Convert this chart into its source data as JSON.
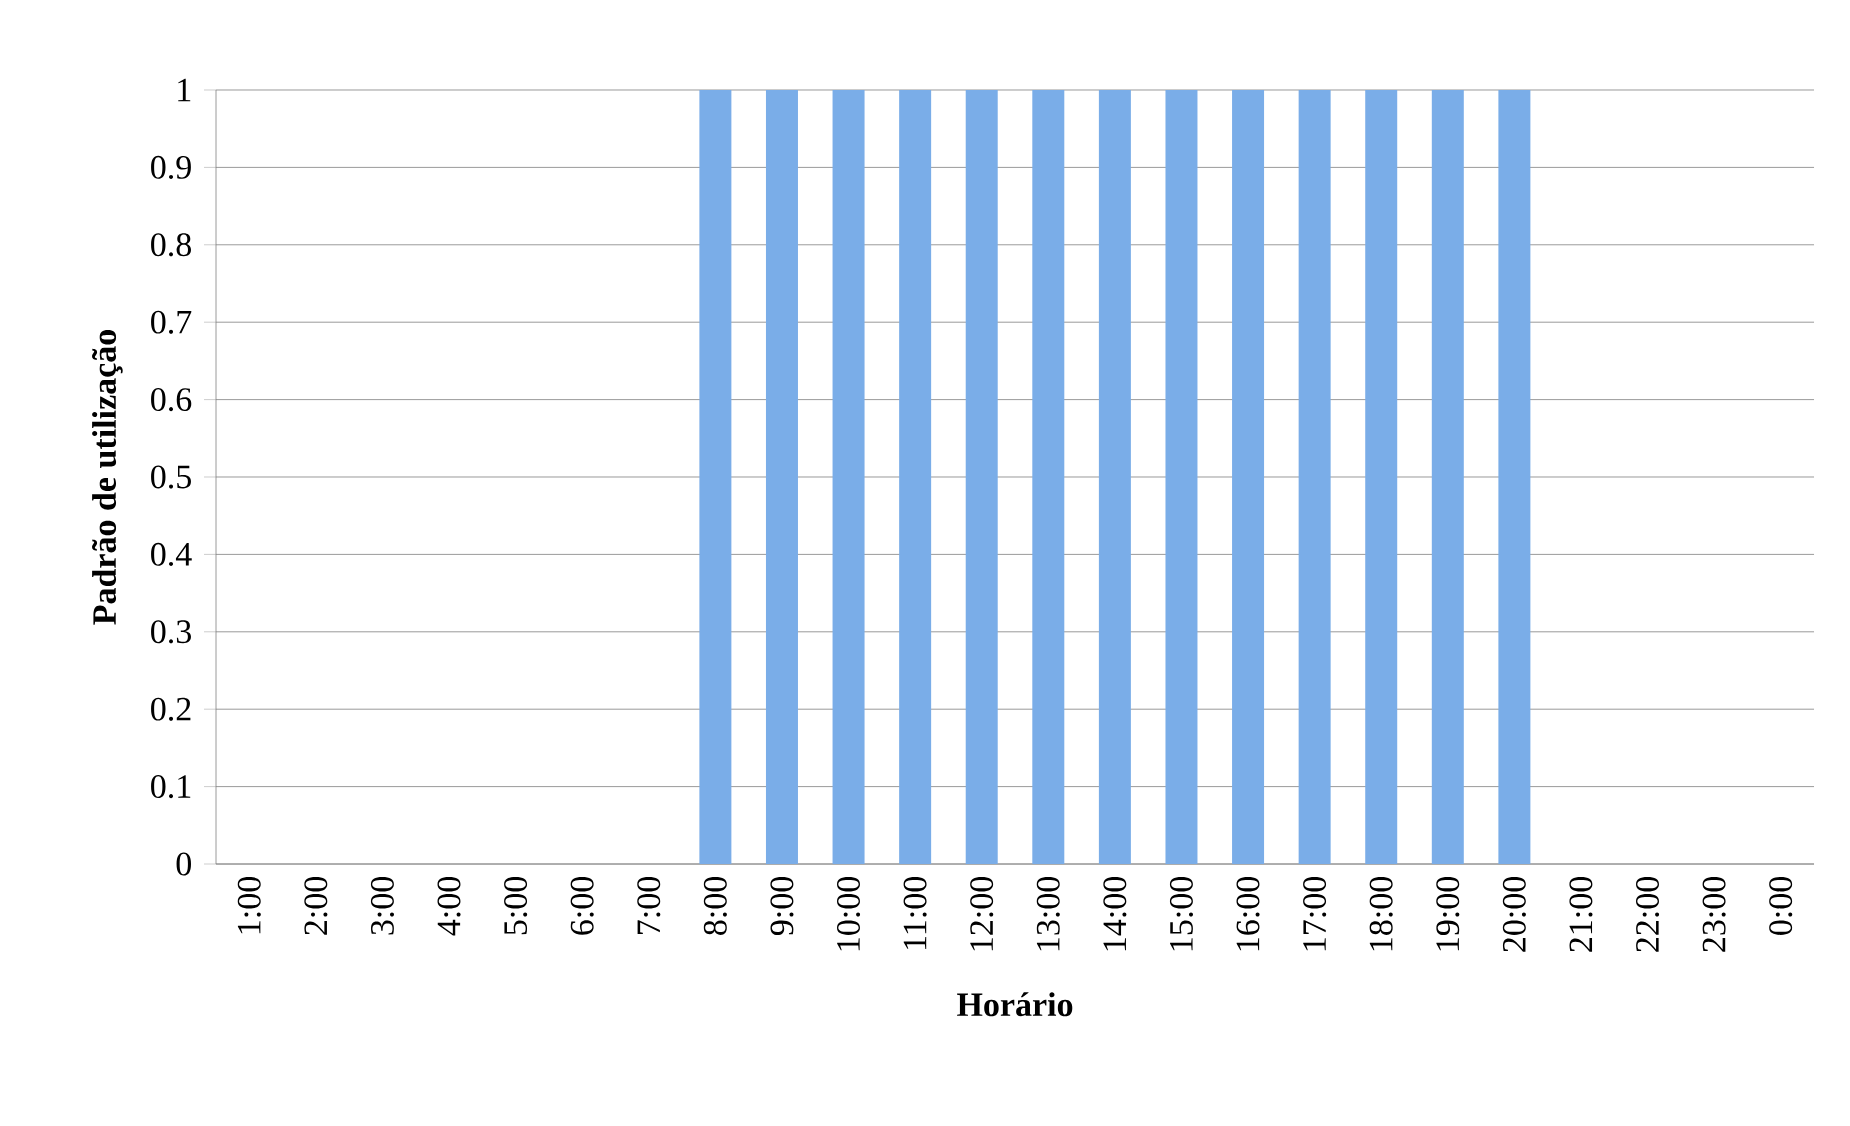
{
  "chart_data": {
    "type": "bar",
    "xlabel": "Horário",
    "ylabel": "Padrão de utilização",
    "categories": [
      "1:00",
      "2:00",
      "3:00",
      "4:00",
      "5:00",
      "6:00",
      "7:00",
      "8:00",
      "9:00",
      "10:00",
      "11:00",
      "12:00",
      "13:00",
      "14:00",
      "15:00",
      "16:00",
      "17:00",
      "18:00",
      "19:00",
      "20:00",
      "21:00",
      "22:00",
      "23:00",
      "0:00"
    ],
    "values": [
      0,
      0,
      0,
      0,
      0,
      0,
      0,
      1,
      1,
      1,
      1,
      1,
      1,
      1,
      1,
      1,
      1,
      1,
      1,
      1,
      0,
      0,
      0,
      0
    ],
    "color": "#7aade8",
    "ylim": [
      0,
      1
    ],
    "yticks": [
      0,
      0.1,
      0.2,
      0.3,
      0.4,
      0.5,
      0.6,
      0.7,
      0.8,
      0.9,
      1
    ],
    "grid": "y"
  }
}
